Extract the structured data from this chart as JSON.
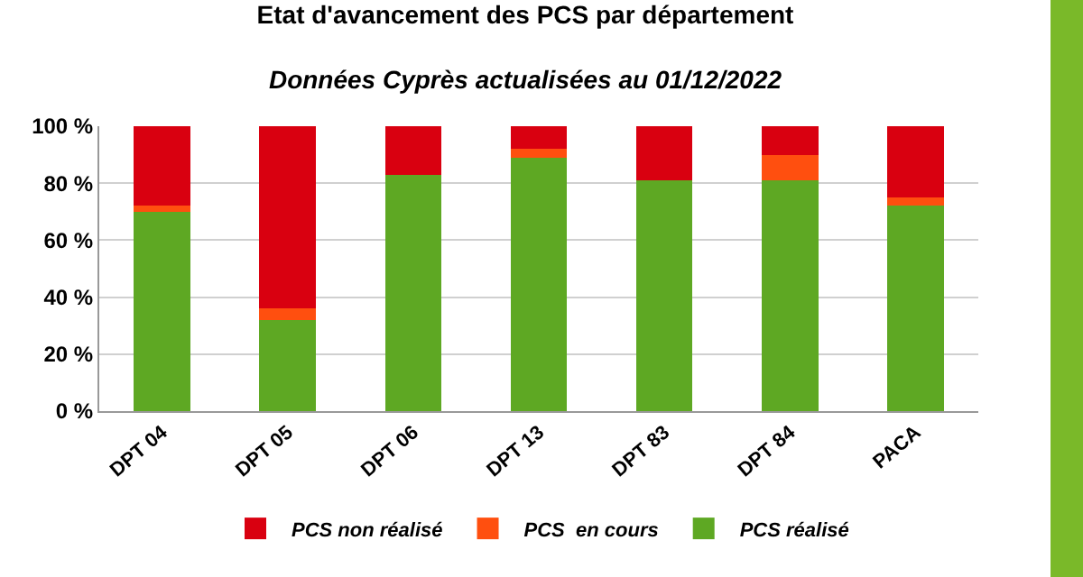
{
  "chart_data": {
    "type": "bar",
    "title": "Etat d'avancement des PCS par département",
    "subtitle": "Données Cyprès actualisées au 01/12/2022",
    "categories": [
      "DPT 04",
      "DPT 05",
      "DPT 06",
      "DPT 13",
      "DPT 83",
      "DPT 84",
      "PACA"
    ],
    "stacked": true,
    "series": [
      {
        "name": "PCS réalisé",
        "color": "#5ea823",
        "values": [
          70,
          32,
          83,
          89,
          81,
          81,
          72
        ]
      },
      {
        "name": "PCS  en cours",
        "color": "#ff4f0f",
        "values": [
          2,
          4,
          0,
          3,
          0,
          9,
          3
        ]
      },
      {
        "name": "PCS non réalisé",
        "color": "#d90010",
        "values": [
          28,
          64,
          17,
          8,
          19,
          10,
          25
        ]
      }
    ],
    "ylim": [
      0,
      100
    ],
    "yticks": [
      {
        "value": 0,
        "label": "0 %"
      },
      {
        "value": 20,
        "label": "20 %"
      },
      {
        "value": 40,
        "label": "40 %"
      },
      {
        "value": 60,
        "label": "60 %"
      },
      {
        "value": 80,
        "label": "80 %"
      },
      {
        "value": 100,
        "label": "100 %"
      }
    ],
    "grid": "y",
    "legend": "bottom"
  }
}
